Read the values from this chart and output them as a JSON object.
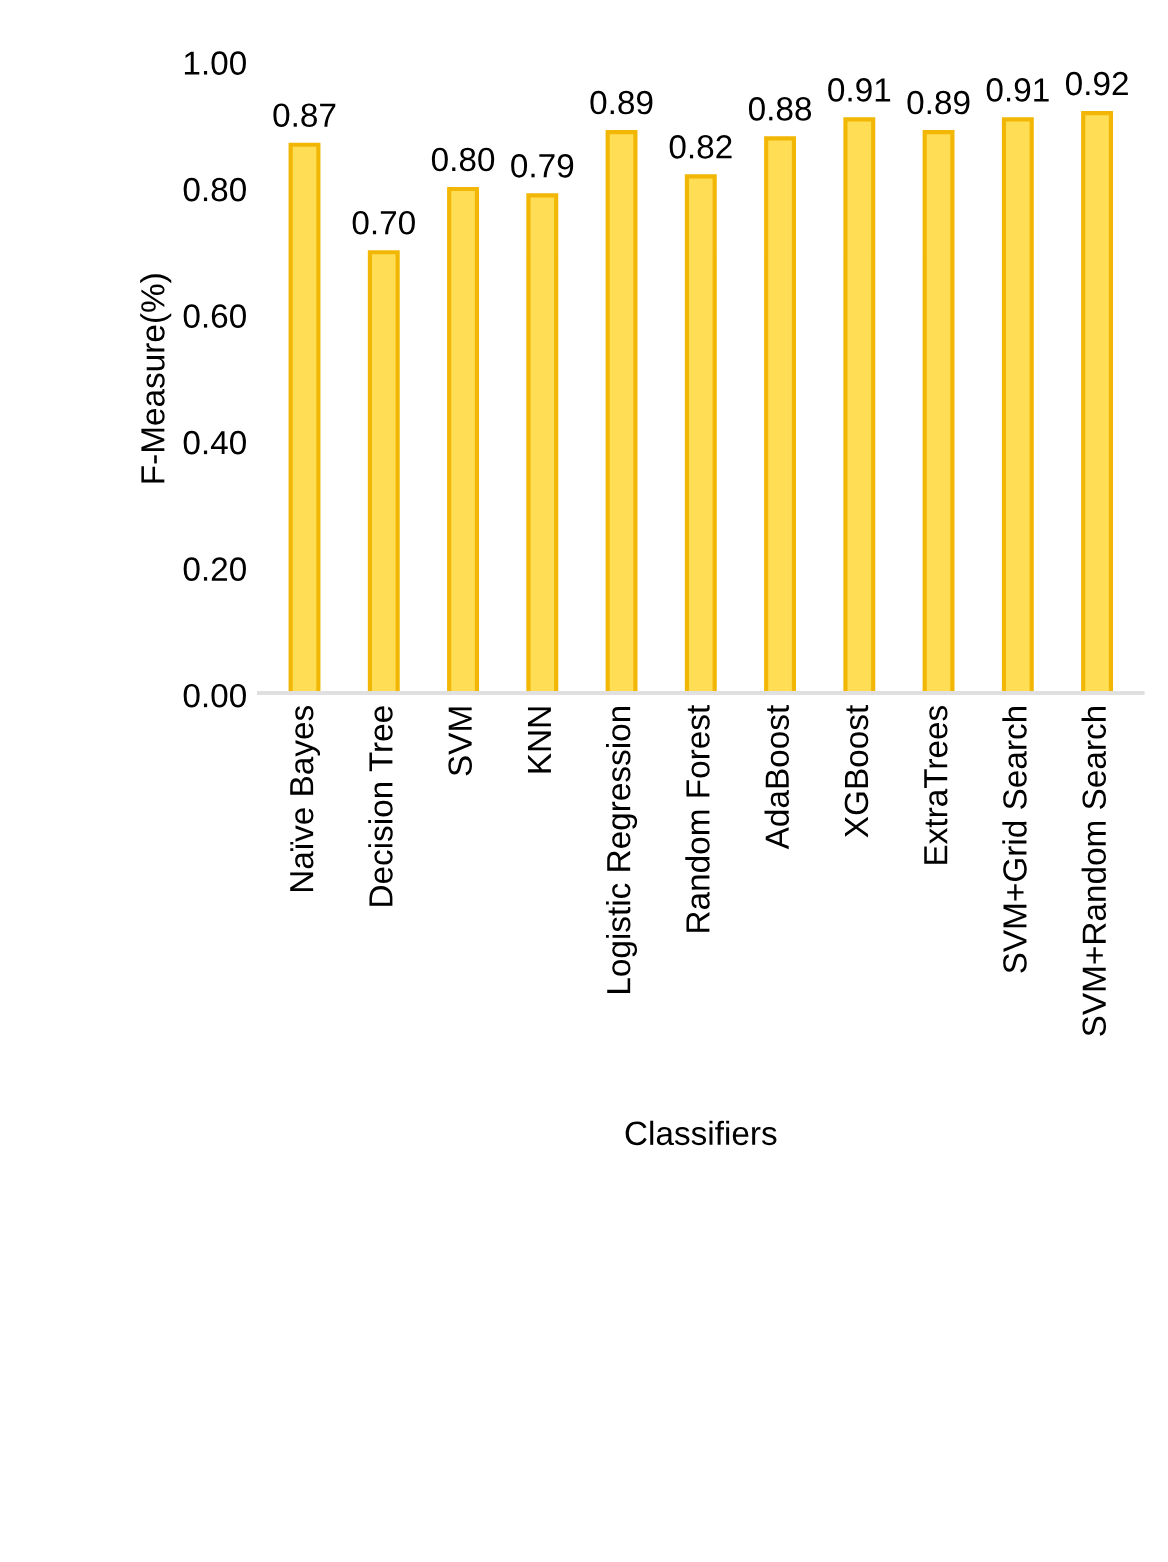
{
  "chart_data": {
    "type": "bar",
    "xlabel": "Classifiers",
    "ylabel": "F-Measure(%)",
    "categories": [
      "Naïve Bayes",
      "Decision Tree",
      "SVM",
      "KNN",
      "Logistic Regression",
      "Random Forest",
      "AdaBoost",
      "XGBoost",
      "ExtraTrees",
      "SVM+Grid Search",
      "SVM+Random Search"
    ],
    "values": [
      0.87,
      0.7,
      0.8,
      0.79,
      0.89,
      0.82,
      0.88,
      0.91,
      0.89,
      0.91,
      0.92
    ],
    "value_labels": [
      "0.87",
      "0.70",
      "0.80",
      "0.79",
      "0.89",
      "0.82",
      "0.88",
      "0.91",
      "0.89",
      "0.91",
      "0.92"
    ],
    "color": "#ffdd55",
    "ylim": [
      0,
      1
    ],
    "yticks": [
      {
        "value": 0,
        "label": "0.00"
      },
      {
        "value": 0.2,
        "label": "0.20"
      },
      {
        "value": 0.4,
        "label": "0.40"
      },
      {
        "value": 0.6,
        "label": "0.60"
      },
      {
        "value": 0.8,
        "label": "0.80"
      },
      {
        "value": 1,
        "label": "1.00"
      }
    ],
    "grid": false,
    "legend": false
  }
}
